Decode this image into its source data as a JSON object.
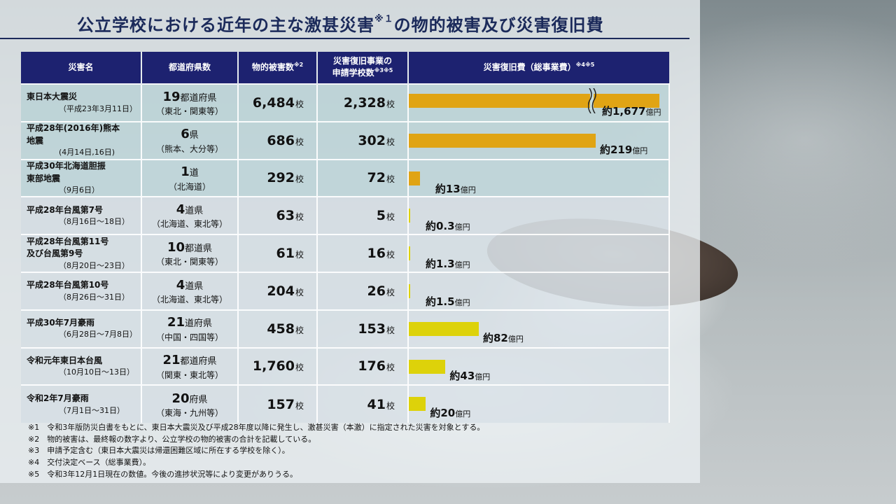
{
  "title": "公立学校における近年の主な激甚災害",
  "title_mark": "※１",
  "title_suffix": "の物的被害及び災害復旧費",
  "headers": {
    "disaster": "災害名",
    "prefectures": "都道府県数",
    "damaged": "物的被害数",
    "damaged_mark": "※2",
    "applied_line1": "災害復旧事業の",
    "applied_line2": "申請学校数",
    "applied_mark": "※3※5",
    "cost": "災害復旧費（総事業費）",
    "cost_mark": "※4※5"
  },
  "rows": [
    {
      "name": "東日本大震災",
      "date": "（平成23年3月11日）",
      "pref_count": "19",
      "pref_suffix": "都道府県",
      "pref_detail": "（東北・関東等）",
      "damaged": "6,484",
      "applied": "2,328",
      "cost_label": "約1,677",
      "cost_unit": "億円"
    },
    {
      "name": "平成28年(2016年)熊本",
      "name2": "地震",
      "date": "(4月14日,16日)",
      "pref_count": "6",
      "pref_suffix": "県",
      "pref_detail": "（熊本、大分等）",
      "damaged": "686",
      "applied": "302",
      "cost_label": "約219",
      "cost_unit": "億円"
    },
    {
      "name": "平成30年北海道胆振",
      "name2": "東部地震",
      "date": "（9月6日）",
      "pref_count": "1",
      "pref_suffix": "道",
      "pref_detail": "（北海道）",
      "damaged": "292",
      "applied": "72",
      "cost_label": "約13",
      "cost_unit": "億円"
    },
    {
      "name": "平成28年台風第7号",
      "date": "（8月16日～18日）",
      "pref_count": "4",
      "pref_suffix": "道県",
      "pref_detail": "（北海道、東北等）",
      "damaged": "63",
      "applied": "5",
      "cost_label": "約0.3",
      "cost_unit": "億円"
    },
    {
      "name": "平成28年台風第11号",
      "name2": "及び台風第9号",
      "date": "（8月20日～23日）",
      "pref_count": "10",
      "pref_suffix": "都道県",
      "pref_detail": "（東北・関東等）",
      "damaged": "61",
      "applied": "16",
      "cost_label": "約1.3",
      "cost_unit": "億円"
    },
    {
      "name": "平成28年台風第10号",
      "date": "（8月26日～31日）",
      "pref_count": "4",
      "pref_suffix": "道県",
      "pref_detail": "（北海道、東北等）",
      "damaged": "204",
      "applied": "26",
      "cost_label": "約1.5",
      "cost_unit": "億円"
    },
    {
      "name": "平成30年7月豪雨",
      "date": "（6月28日～7月8日）",
      "pref_count": "21",
      "pref_suffix": "道府県",
      "pref_detail": "（中国・四国等）",
      "damaged": "458",
      "applied": "153",
      "cost_label": "約82",
      "cost_unit": "億円"
    },
    {
      "name": "令和元年東日本台風",
      "date": "（10月10日～13日）",
      "pref_count": "21",
      "pref_suffix": "都道府県",
      "pref_detail": "（関東・東北等）",
      "damaged": "1,760",
      "applied": "176",
      "cost_label": "約43",
      "cost_unit": "億円"
    },
    {
      "name": "令和2年7月豪雨",
      "date": "（7月1日～31日）",
      "pref_count": "20",
      "pref_suffix": "府県",
      "pref_detail": "（東海・九州等）",
      "damaged": "157",
      "applied": "41",
      "cost_label": "約20",
      "cost_unit": "億円"
    }
  ],
  "unit_school": "校",
  "notes": [
    "※1　令和3年版防災白書をもとに、東日本大震災及び平成28年度以降に発生し、激甚災害（本激）に指定された災害を対象とする。",
    "※2　物的被害は、最終報の数字より、公立学校の物的被害の合計を記載している。",
    "※3　申請予定含む（東日本大震災は帰還困難区域に所在する学校を除く）。",
    "※4　交付決定ベース（総事業費）。",
    "※5　令和3年12月1日現在の数値。今後の進捗状況等により変更がありうる。"
  ],
  "colors": {
    "header_bg": "#1d2270",
    "bar_orange": "#e0a414",
    "bar_yellow": "#ddd20a"
  },
  "chart_data": {
    "type": "bar",
    "orientation": "horizontal",
    "axis_break": "broken bar for 東日本大震災",
    "categories": [
      "東日本大震災",
      "平成28年(2016年)熊本地震",
      "平成30年北海道胆振東部地震",
      "平成28年台風第7号",
      "平成28年台風第11号及び台風第9号",
      "平成28年台風第10号",
      "平成30年7月豪雨",
      "令和元年東日本台風",
      "令和2年7月豪雨"
    ],
    "values": [
      1677,
      219,
      13,
      0.3,
      1.3,
      1.5,
      82,
      43,
      20
    ],
    "bar_colors": [
      "orange",
      "orange",
      "orange",
      "yellow",
      "yellow",
      "yellow",
      "yellow",
      "yellow",
      "yellow"
    ],
    "data_labels": [
      "約1,677億円",
      "約219億円",
      "約13億円",
      "約0.3億円",
      "約1.3億円",
      "約1.5億円",
      "約82億円",
      "約43億円",
      "約20億円"
    ],
    "grid": false,
    "legend": "none"
  }
}
